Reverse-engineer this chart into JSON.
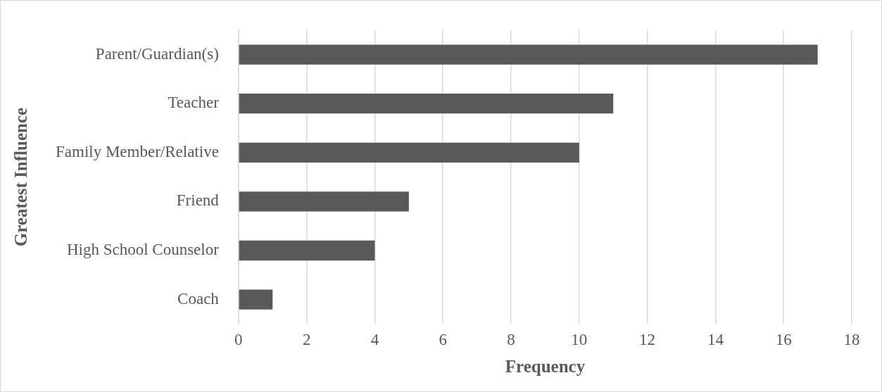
{
  "chart_data": {
    "type": "bar",
    "orientation": "horizontal",
    "categories": [
      "Parent/Guardian(s)",
      "Teacher",
      "Family Member/Relative",
      "Friend",
      "High School Counselor",
      "Coach"
    ],
    "values": [
      17,
      11,
      10,
      5,
      4,
      1
    ],
    "color": "#595959",
    "xlim": [
      0,
      18
    ],
    "xticks": [
      0,
      2,
      4,
      6,
      8,
      10,
      12,
      14,
      16,
      18
    ],
    "xlabel": "Frequency",
    "ylabel": "Greatest Influence",
    "grid": "x"
  }
}
